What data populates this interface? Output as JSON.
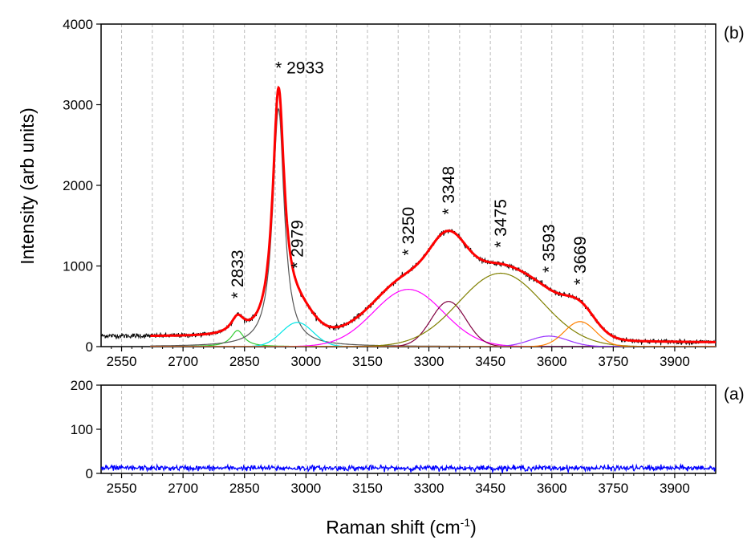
{
  "chart_data": [
    {
      "type": "line",
      "panel_label": "(b)",
      "xlim": [
        2500,
        4000
      ],
      "ylim": [
        0,
        4000
      ],
      "y_ticks": [
        0,
        1000,
        2000,
        3000,
        4000
      ],
      "x_ticks": [
        2550,
        2700,
        2850,
        3000,
        3150,
        3300,
        3450,
        3600,
        3750,
        3900
      ],
      "baseline": 130,
      "baseline_slope": -0.05,
      "components": [
        {
          "shape": "lorentz",
          "center": 2833,
          "height": 200,
          "width": 38,
          "color": "#33cc33"
        },
        {
          "shape": "lorentz",
          "center": 2933,
          "height": 2950,
          "width": 34,
          "color": "#555555"
        },
        {
          "shape": "gauss",
          "center": 2979,
          "height": 300,
          "width": 90,
          "color": "#00e5e5"
        },
        {
          "shape": "gauss",
          "center": 3250,
          "height": 710,
          "width": 200,
          "color": "#ff00ff"
        },
        {
          "shape": "gauss",
          "center": 3348,
          "height": 560,
          "width": 100,
          "color": "#800040"
        },
        {
          "shape": "gauss",
          "center": 3475,
          "height": 910,
          "width": 240,
          "color": "#808000"
        },
        {
          "shape": "gauss",
          "center": 3593,
          "height": 130,
          "width": 110,
          "color": "#9933ff"
        },
        {
          "shape": "gauss",
          "center": 3669,
          "height": 310,
          "width": 90,
          "color": "#ff8000"
        }
      ],
      "fit_color": "#ff0000",
      "data_color": "#000000",
      "peak_labels": [
        {
          "x": 2933,
          "text": "* 2933",
          "rotated": false
        },
        {
          "x": 2833,
          "text": "* 2833",
          "rotated": true
        },
        {
          "x": 2979,
          "text": "* 2979",
          "rotated": true
        },
        {
          "x": 3250,
          "text": "* 3250",
          "rotated": true
        },
        {
          "x": 3348,
          "text": "* 3348",
          "rotated": true
        },
        {
          "x": 3475,
          "text": "* 3475",
          "rotated": true
        },
        {
          "x": 3593,
          "text": "* 3593",
          "rotated": true
        },
        {
          "x": 3669,
          "text": "* 3669",
          "rotated": true
        }
      ]
    },
    {
      "type": "line",
      "panel_label": "(a)",
      "xlim": [
        2500,
        4000
      ],
      "ylim": [
        0,
        200
      ],
      "y_ticks": [
        0,
        100,
        200
      ],
      "x_ticks": [
        2550,
        2700,
        2850,
        3000,
        3150,
        3300,
        3450,
        3600,
        3750,
        3900
      ],
      "level": 12,
      "noise": 3,
      "color": "#0000ff"
    }
  ],
  "ylabel": "Intensity (arb units)",
  "xlabel_main": "Raman shift (cm",
  "xlabel_sup": "-1",
  "xlabel_end": ")"
}
